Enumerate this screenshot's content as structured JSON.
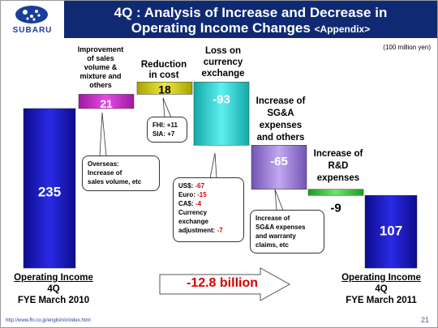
{
  "header": {
    "logo_text": "SUBARU",
    "title_line1": "4Q : Analysis of Increase and Decrease in",
    "title_line2": "Operating Income Changes",
    "title_tag": "<Appendix>",
    "units": "(100 million yen)"
  },
  "chart_data": {
    "type": "bar",
    "subtype": "waterfall",
    "categories": [
      "Operating Income 4Q FYE March 2010",
      "Improvement of sales volume & mixture and others",
      "Reduction in cost",
      "Loss on currency exchange",
      "Increase of SG&A expenses and others",
      "Increase of R&D expenses",
      "Operating Income 4Q FYE March 2011"
    ],
    "values": [
      235,
      21,
      18,
      -93,
      -65,
      -9,
      107
    ],
    "value_labels": [
      "235",
      "21",
      "18",
      "-93",
      "-65",
      "-9",
      "107"
    ],
    "colors": [
      "#1c1cc8",
      "#cc33cc",
      "#d6d000",
      "#22cccc",
      "#9a7fd8",
      "#39c939",
      "#1c1cc8"
    ],
    "ylim": [
      0,
      282
    ],
    "grid": false,
    "legend": "none",
    "total_change": "-12.8 billion"
  },
  "labels": {
    "improvement": [
      "Improvement",
      "of sales",
      "volume &",
      "mixture and",
      "others"
    ],
    "reduction": [
      "Reduction",
      "in cost"
    ],
    "loss": [
      "Loss on",
      "currency",
      "exchange"
    ],
    "sga": [
      "Increase of",
      "SG&A",
      "expenses",
      "and others"
    ],
    "rnd": [
      "Increase of",
      "R&D",
      "expenses"
    ],
    "left_total": [
      "Operating Income",
      "4Q",
      "FYE March 2010"
    ],
    "right_total": [
      "Operating Income",
      "4Q",
      "FYE March 2011"
    ]
  },
  "callouts": {
    "overseas": [
      "Overseas:",
      "Increase of",
      "sales volume, etc"
    ],
    "fhi": "FHI: +11",
    "sia": "SIA: +7",
    "currency": [
      {
        "label": "US$:",
        "value": "-67"
      },
      {
        "label": "Euro:",
        "value": "-15"
      },
      {
        "label": "CA$:",
        "value": "-4"
      }
    ],
    "currency_tail_lines": [
      "Currency",
      "exchange"
    ],
    "currency_adj_label": "adjustment:",
    "currency_adj_value": "-7",
    "sga_note": [
      "Increase of",
      "SG&A expenses",
      "and warranty",
      "claims, etc"
    ]
  },
  "footer": {
    "url": "http://www.fhi.co.jp/english/ir/index.html",
    "page": "21"
  }
}
